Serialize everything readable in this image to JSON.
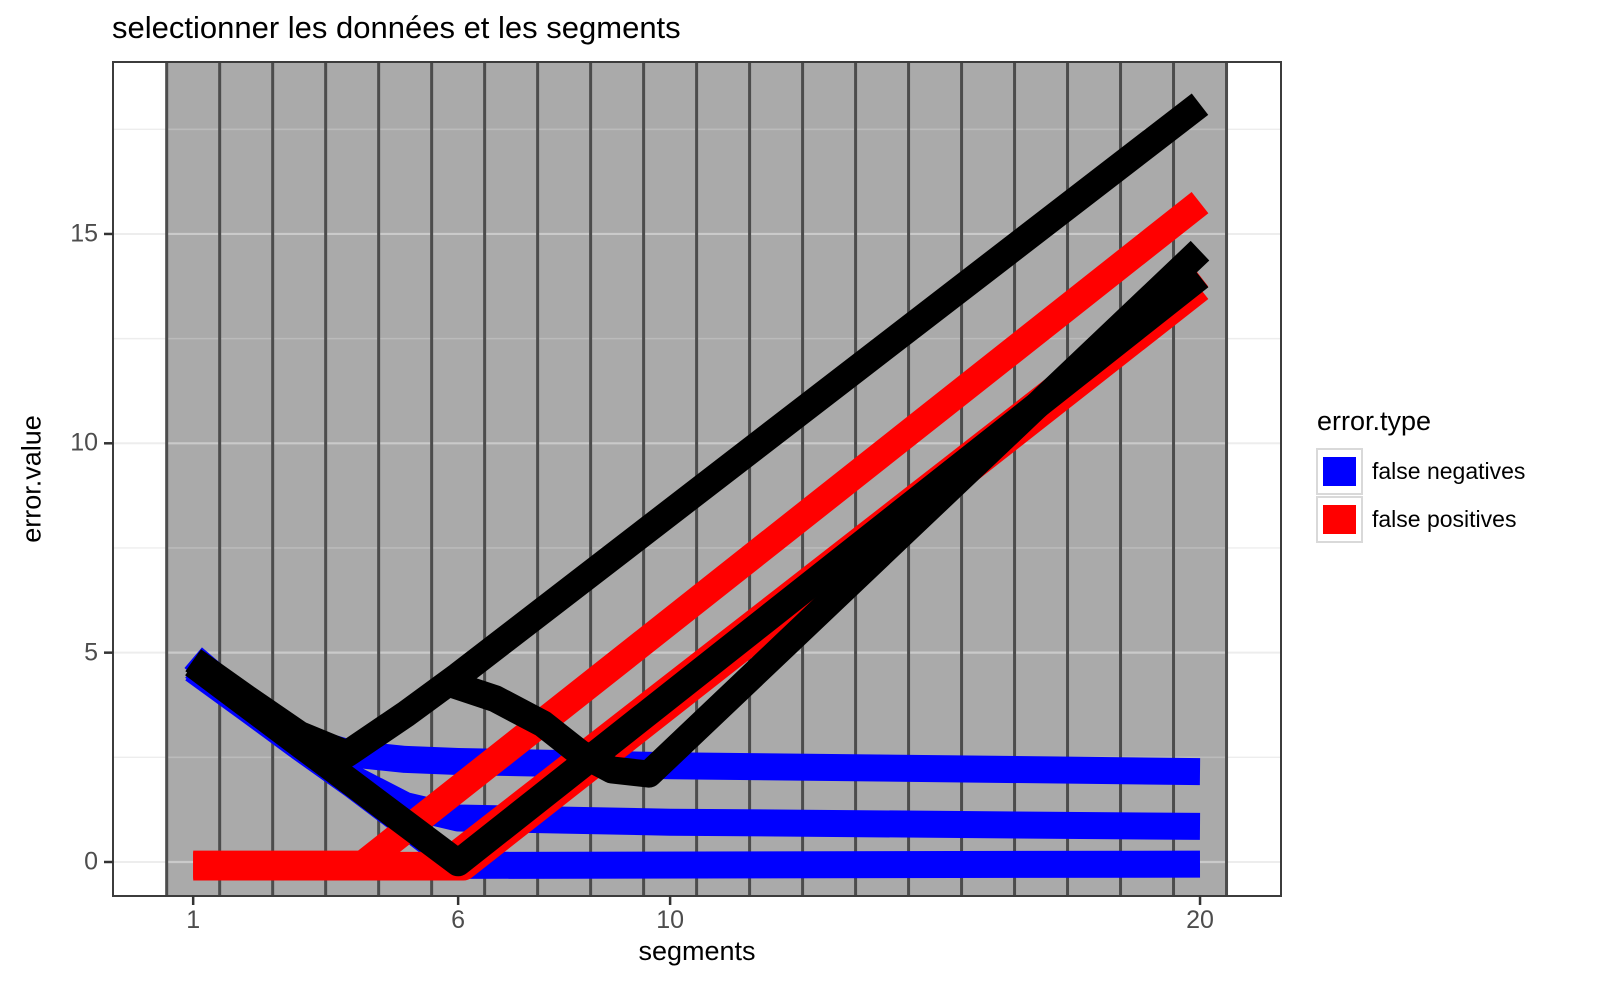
{
  "title": "selectionner les données et les segments",
  "x_axis": {
    "label": "segments",
    "ticks": [
      {
        "v": 1,
        "label": "1"
      },
      {
        "v": 6,
        "label": "6"
      },
      {
        "v": 10,
        "label": "10"
      },
      {
        "v": 20,
        "label": "20"
      }
    ],
    "range": [
      -0.513,
      21.528
    ]
  },
  "y_axis": {
    "label": "error.value",
    "ticks": [
      {
        "v": 0,
        "label": "0"
      },
      {
        "v": 5,
        "label": "5"
      },
      {
        "v": 10,
        "label": "10"
      },
      {
        "v": 15,
        "label": "15"
      }
    ],
    "minor": [
      2.5,
      7.5,
      12.5,
      17.5
    ],
    "range": [
      -0.812,
      19.107
    ]
  },
  "legend": {
    "title": "error.type",
    "items": [
      {
        "label": "false negatives",
        "color": "#0000ff"
      },
      {
        "label": "false positives",
        "color": "#ff0000"
      }
    ]
  },
  "colors": {
    "selector_band": "#aaaaaa",
    "selector_border": "#4c4c4c",
    "panel_border": "#3c3c3c",
    "grid_outside": "#ededed",
    "grid_major_on_band": "rgba(255,255,255,0.38)",
    "grid_minor_on_band": "rgba(255,255,255,0.20)",
    "tick_mark": "#333333",
    "false_negatives": "#0000ff",
    "false_positives": "#ff0000",
    "errors": "#000000"
  },
  "chart_data": {
    "type": "line",
    "title": "selectionner les données et les segments",
    "xlabel": "segments",
    "ylabel": "error.value",
    "xlim": [
      -0.5,
      21.5
    ],
    "ylim": [
      -0.8,
      19.1
    ],
    "x_ticks": [
      1,
      6,
      10,
      20
    ],
    "y_ticks": [
      0,
      5,
      10,
      15
    ],
    "grid": "on",
    "legend_position": "right",
    "selector_rects": {
      "xmin": 0.5,
      "xmax": 20.5,
      "count": 20,
      "note": "clickable tall rectangles, one per segment value 1..20"
    },
    "series": [
      {
        "name": "false-negatives-profile-3",
        "error_type": "false negatives",
        "profile": 3,
        "color": "#0000ff",
        "points": [
          [
            1,
            4.6
          ],
          [
            2,
            3.68
          ],
          [
            3,
            2.75
          ],
          [
            4,
            1.85
          ],
          [
            5,
            0.9
          ],
          [
            6,
            -0.08
          ],
          [
            20,
            -0.05
          ]
        ]
      },
      {
        "name": "false-negatives-profile-2",
        "error_type": "false negatives",
        "profile": 2,
        "color": "#0000ff",
        "points": [
          [
            1,
            4.66
          ],
          [
            2,
            3.72
          ],
          [
            3,
            2.85
          ],
          [
            4,
            2.0
          ],
          [
            5,
            1.35
          ],
          [
            6,
            1.05
          ],
          [
            8,
            1.0
          ],
          [
            10,
            0.95
          ],
          [
            20,
            0.85
          ]
        ]
      },
      {
        "name": "false-negatives-profile-1",
        "error_type": "false negatives",
        "profile": 1,
        "color": "#0000ff",
        "points": [
          [
            1,
            4.88
          ],
          [
            2,
            3.8
          ],
          [
            3,
            2.95
          ],
          [
            4,
            2.58
          ],
          [
            5,
            2.45
          ],
          [
            6,
            2.4
          ],
          [
            10,
            2.3
          ],
          [
            20,
            2.16
          ]
        ]
      },
      {
        "name": "false-positives-profile-3",
        "error_type": "false positives",
        "profile": 3,
        "color": "#ff0000",
        "points": [
          [
            1,
            -0.12
          ],
          [
            6.1,
            -0.12
          ],
          [
            20,
            13.7
          ]
        ]
      },
      {
        "name": "false-positives-profile-2",
        "error_type": "false positives",
        "profile": 2,
        "color": "#ff0000",
        "points": [
          [
            1,
            -0.08
          ],
          [
            5.7,
            -0.08
          ],
          [
            20,
            14.0
          ]
        ]
      },
      {
        "name": "false-positives-profile-1",
        "error_type": "false positives",
        "profile": 1,
        "color": "#ff0000",
        "points": [
          [
            1,
            -0.05
          ],
          [
            4.2,
            -0.05
          ],
          [
            20,
            15.75
          ]
        ]
      },
      {
        "name": "errors-profile-3",
        "error_type": "errors",
        "profile": 3,
        "color": "#000000",
        "points": [
          [
            1,
            4.72
          ],
          [
            2,
            3.77
          ],
          [
            3,
            2.82
          ],
          [
            4,
            1.88
          ],
          [
            5,
            0.93
          ],
          [
            6,
            -0.02
          ],
          [
            20,
            13.98
          ]
        ]
      },
      {
        "name": "errors-profile-2",
        "error_type": "errors",
        "profile": 2,
        "color": "#000000",
        "points": [
          [
            5.75,
            4.3
          ],
          [
            6.7,
            3.9
          ],
          [
            7.6,
            3.3
          ],
          [
            8.3,
            2.6
          ],
          [
            8.9,
            2.2
          ],
          [
            9.6,
            2.1
          ],
          [
            20,
            14.6
          ]
        ]
      },
      {
        "name": "errors-profile-1",
        "error_type": "errors",
        "profile": 1,
        "color": "#000000",
        "points": [
          [
            1,
            4.82
          ],
          [
            2,
            3.92
          ],
          [
            3,
            3.05
          ],
          [
            3.9,
            2.58
          ],
          [
            5,
            3.52
          ],
          [
            6,
            4.45
          ],
          [
            20,
            18.1
          ]
        ]
      }
    ]
  }
}
